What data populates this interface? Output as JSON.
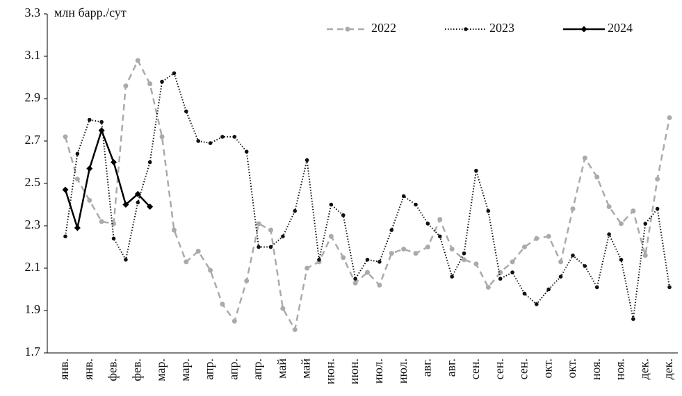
{
  "chart_data": {
    "type": "line",
    "y_label": "млн барр./сут",
    "categories": [
      "янв.",
      null,
      "янв.",
      null,
      "фев.",
      null,
      "фев.",
      null,
      "мар.",
      null,
      "мар.",
      null,
      "апр.",
      null,
      "апр.",
      null,
      "апр.",
      null,
      "май",
      null,
      "май",
      null,
      "июн.",
      null,
      "июн.",
      null,
      "июл.",
      null,
      "июл.",
      null,
      "авг.",
      null,
      "авг.",
      null,
      "сен.",
      null,
      "сен.",
      null,
      "сен.",
      null,
      "окт.",
      null,
      "окт.",
      null,
      "ноя.",
      null,
      "ноя.",
      null,
      "дек.",
      null,
      "дек."
    ],
    "series": [
      {
        "name": "2022",
        "color": "#aaaaaa",
        "values": [
          2.72,
          2.52,
          2.42,
          2.32,
          2.31,
          2.96,
          3.08,
          2.97,
          2.72,
          2.28,
          2.13,
          2.18,
          2.09,
          1.93,
          1.85,
          2.04,
          2.31,
          2.28,
          1.91,
          1.81,
          2.1,
          2.13,
          2.25,
          2.15,
          2.03,
          2.08,
          2.02,
          2.17,
          2.19,
          2.17,
          2.2,
          2.33,
          2.19,
          2.14,
          2.12,
          2.01,
          2.08,
          2.13,
          2.2,
          2.24,
          2.25,
          2.13,
          2.38,
          2.62,
          2.53,
          2.39,
          2.31,
          2.37,
          2.16,
          2.52,
          2.81
        ]
      },
      {
        "name": "2023",
        "color": "#111111",
        "values": [
          2.25,
          2.64,
          2.8,
          2.79,
          2.24,
          2.14,
          2.41,
          2.6,
          2.98,
          3.02,
          2.84,
          2.7,
          2.69,
          2.72,
          2.72,
          2.65,
          2.2,
          2.2,
          2.25,
          2.37,
          2.61,
          2.14,
          2.4,
          2.35,
          2.05,
          2.14,
          2.13,
          2.28,
          2.44,
          2.4,
          2.31,
          2.25,
          2.06,
          2.17,
          2.56,
          2.37,
          2.05,
          2.08,
          1.98,
          1.93,
          2.0,
          2.06,
          2.16,
          2.11,
          2.01,
          2.26,
          2.14,
          1.86,
          2.31,
          2.38,
          2.01
        ]
      },
      {
        "name": "2024",
        "color": "#000000",
        "values": [
          2.47,
          2.29,
          2.57,
          2.75,
          2.6,
          2.4,
          2.45,
          2.39,
          null,
          null,
          null,
          null,
          null,
          null,
          null,
          null,
          null,
          null,
          null,
          null,
          null,
          null,
          null,
          null,
          null,
          null,
          null,
          null,
          null,
          null,
          null,
          null,
          null,
          null,
          null,
          null,
          null,
          null,
          null,
          null,
          null,
          null,
          null,
          null,
          null,
          null,
          null,
          null,
          null,
          null,
          null
        ]
      }
    ],
    "ylim": [
      1.7,
      3.3
    ],
    "yticks": [
      1.7,
      1.9,
      2.1,
      2.3,
      2.5,
      2.7,
      2.9,
      3.1,
      3.3
    ],
    "legend": "top"
  }
}
